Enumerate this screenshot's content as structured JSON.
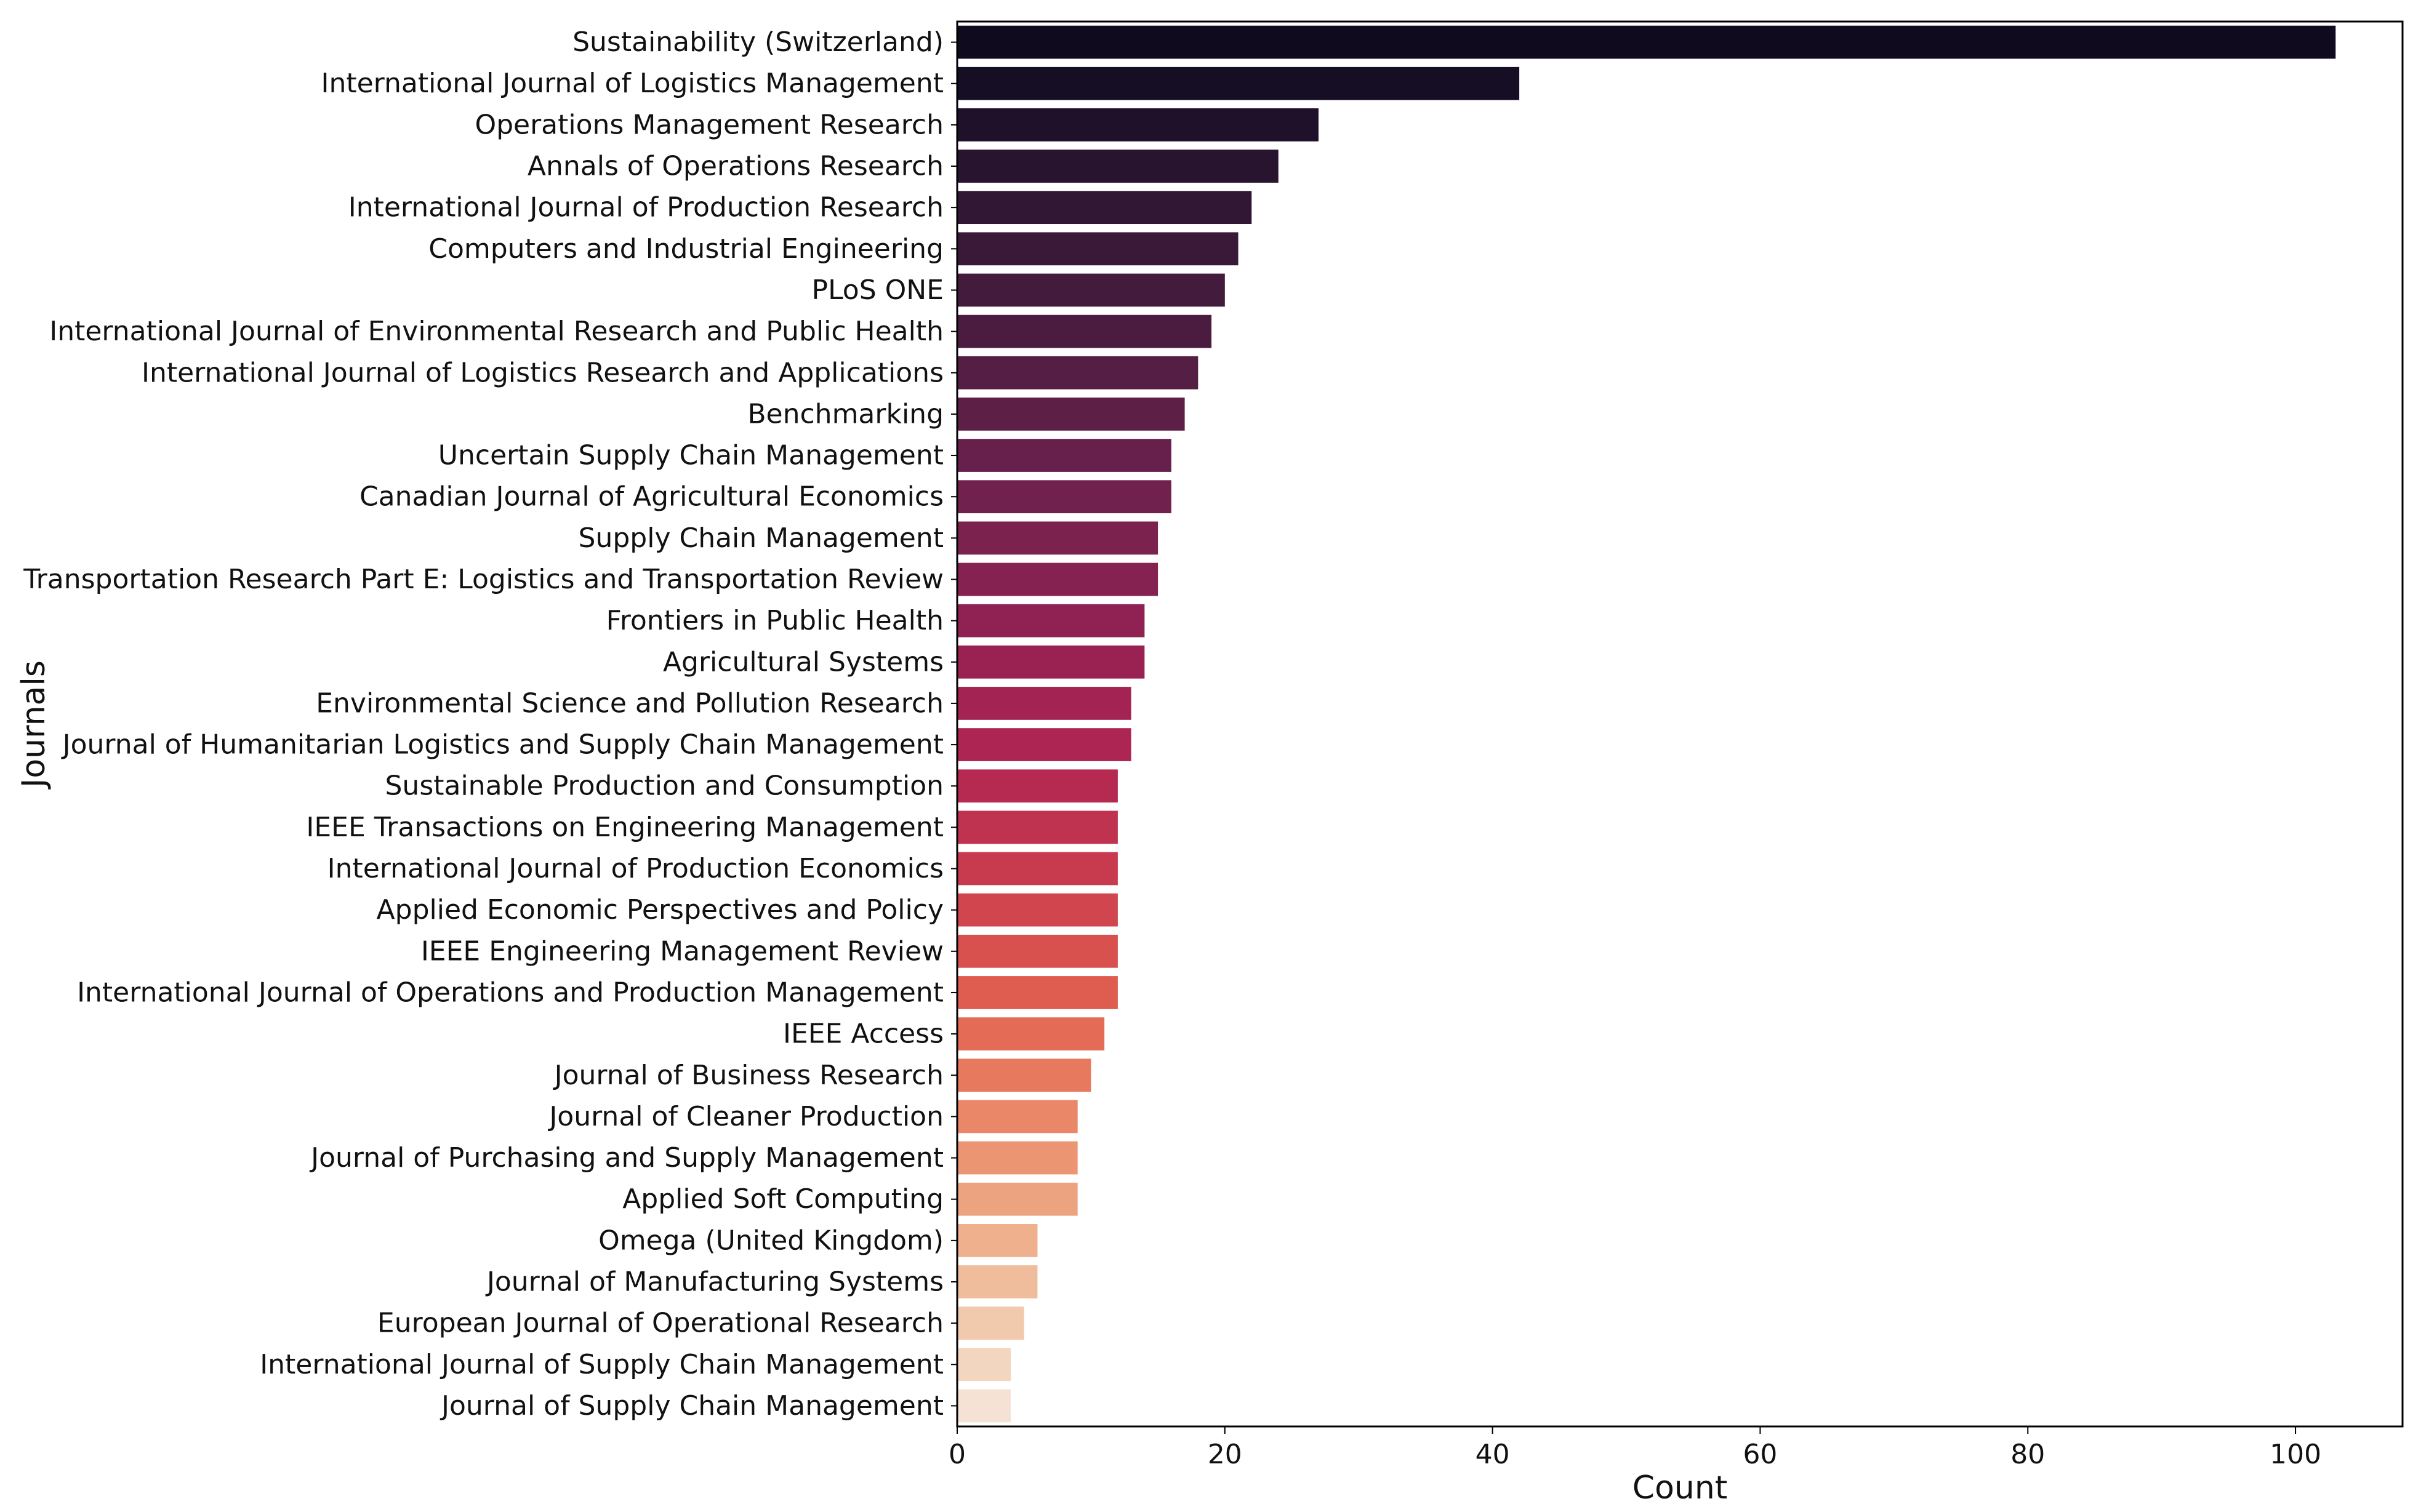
{
  "chart_data": {
    "type": "bar",
    "orientation": "horizontal",
    "title": "",
    "xlabel": "Count",
    "ylabel": "Journals",
    "xlim": [
      0,
      108
    ],
    "xticks": [
      0,
      20,
      40,
      60,
      80,
      100
    ],
    "grid": false,
    "legend": "none",
    "palette": "rocket",
    "categories": [
      "Sustainability (Switzerland)",
      "International Journal of Logistics Management",
      "Operations Management Research",
      "Annals of Operations Research",
      "International Journal of Production Research",
      "Computers and Industrial Engineering",
      "PLoS ONE",
      "International Journal of Environmental Research and Public Health",
      "International Journal of Logistics Research and Applications",
      "Benchmarking",
      "Uncertain Supply Chain Management",
      "Canadian Journal of Agricultural Economics",
      "Supply Chain Management",
      "Transportation Research Part E: Logistics and Transportation Review",
      "Frontiers in Public Health",
      "Agricultural Systems",
      "Environmental Science and Pollution Research",
      "Journal of Humanitarian Logistics and Supply Chain Management",
      "Sustainable Production and Consumption",
      "IEEE Transactions on Engineering Management",
      "International Journal of Production Economics",
      "Applied Economic Perspectives and Policy",
      "IEEE Engineering Management Review",
      "International Journal of Operations and Production Management",
      "IEEE Access",
      "Journal of Business Research",
      "Journal of Cleaner Production",
      "Journal of Purchasing and Supply Management",
      "Applied Soft Computing",
      "Omega (United Kingdom)",
      "Journal of Manufacturing Systems",
      "European Journal of Operational Research",
      "International Journal of Supply Chain Management",
      "Journal of Supply Chain Management"
    ],
    "values": [
      103,
      42,
      27,
      24,
      22,
      21,
      20,
      19,
      18,
      17,
      16,
      16,
      15,
      15,
      14,
      14,
      13,
      13,
      12,
      12,
      12,
      12,
      12,
      12,
      11,
      10,
      9,
      9,
      9,
      6,
      6,
      5,
      4,
      4
    ],
    "colors": [
      "#0f0a1e",
      "#160e24",
      "#1f1129",
      "#28142f",
      "#311733",
      "#3a1938",
      "#431b3c",
      "#4c1c40",
      "#551e44",
      "#5e1f47",
      "#67204b",
      "#71214d",
      "#7b224f",
      "#852251",
      "#8f2252",
      "#992252",
      "#a32352",
      "#ad2552",
      "#b62a51",
      "#bf3250",
      "#c83b4f",
      "#d0454e",
      "#d8514e",
      "#df5d50",
      "#e46b56",
      "#e7795f",
      "#e98768",
      "#eb9573",
      "#eca37f",
      "#eeb08d",
      "#efbd9c",
      "#f1caad",
      "#f3d6c0",
      "#f5e2d4"
    ]
  }
}
